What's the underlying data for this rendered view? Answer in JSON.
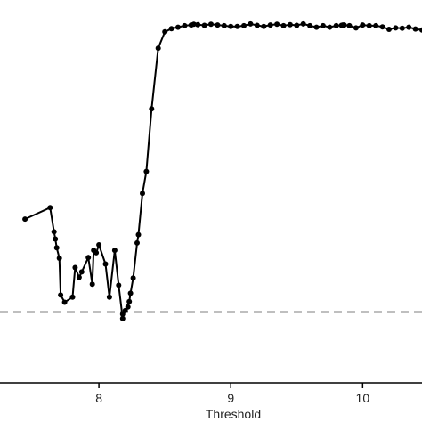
{
  "chart_data": {
    "type": "line",
    "xlabel": "Threshold",
    "ylabel": "",
    "xlim": [
      7.25,
      10.45
    ],
    "ylim": [
      0,
      1
    ],
    "x_ticks": [
      "8",
      "9",
      "10"
    ],
    "grid": false,
    "reference_line": {
      "y": 0.186,
      "style": "dashed"
    },
    "series": [
      {
        "marker": "circle",
        "x": [
          7.44,
          7.63,
          7.66,
          7.67,
          7.68,
          7.7,
          7.71,
          7.74,
          7.8,
          7.82,
          7.85,
          7.87,
          7.92,
          7.95,
          7.96,
          7.98,
          8.0,
          8.05,
          8.08,
          8.12,
          8.15,
          8.18,
          8.18,
          8.2,
          8.22,
          8.23,
          8.24,
          8.26,
          8.29,
          8.3,
          8.33,
          8.36,
          8.4,
          8.45,
          8.5,
          8.55,
          8.6,
          8.65,
          8.7,
          8.72,
          8.75,
          8.8,
          8.85,
          8.9,
          8.95,
          9.0,
          9.05,
          9.1,
          9.15,
          9.2,
          9.25,
          9.3,
          9.35,
          9.4,
          9.45,
          9.5,
          9.55,
          9.6,
          9.65,
          9.7,
          9.75,
          9.8,
          9.84,
          9.85,
          9.86,
          9.9,
          9.95,
          10.0,
          10.05,
          10.1,
          10.15,
          10.2,
          10.25,
          10.3,
          10.35,
          10.4,
          10.45
        ],
        "y": [
          0.443,
          0.475,
          0.408,
          0.388,
          0.364,
          0.335,
          0.233,
          0.213,
          0.227,
          0.309,
          0.282,
          0.297,
          0.337,
          0.263,
          0.357,
          0.35,
          0.372,
          0.319,
          0.227,
          0.357,
          0.26,
          0.168,
          0.18,
          0.19,
          0.2,
          0.215,
          0.238,
          0.28,
          0.377,
          0.4,
          0.514,
          0.575,
          0.748,
          0.916,
          0.961,
          0.97,
          0.974,
          0.978,
          0.98,
          0.982,
          0.981,
          0.979,
          0.982,
          0.98,
          0.978,
          0.976,
          0.976,
          0.978,
          0.983,
          0.979,
          0.976,
          0.98,
          0.982,
          0.978,
          0.981,
          0.979,
          0.983,
          0.978,
          0.974,
          0.978,
          0.974,
          0.978,
          0.979,
          0.98,
          0.98,
          0.978,
          0.972,
          0.98,
          0.978,
          0.978,
          0.975,
          0.968,
          0.972,
          0.971,
          0.974,
          0.969,
          0.966
        ]
      }
    ]
  }
}
